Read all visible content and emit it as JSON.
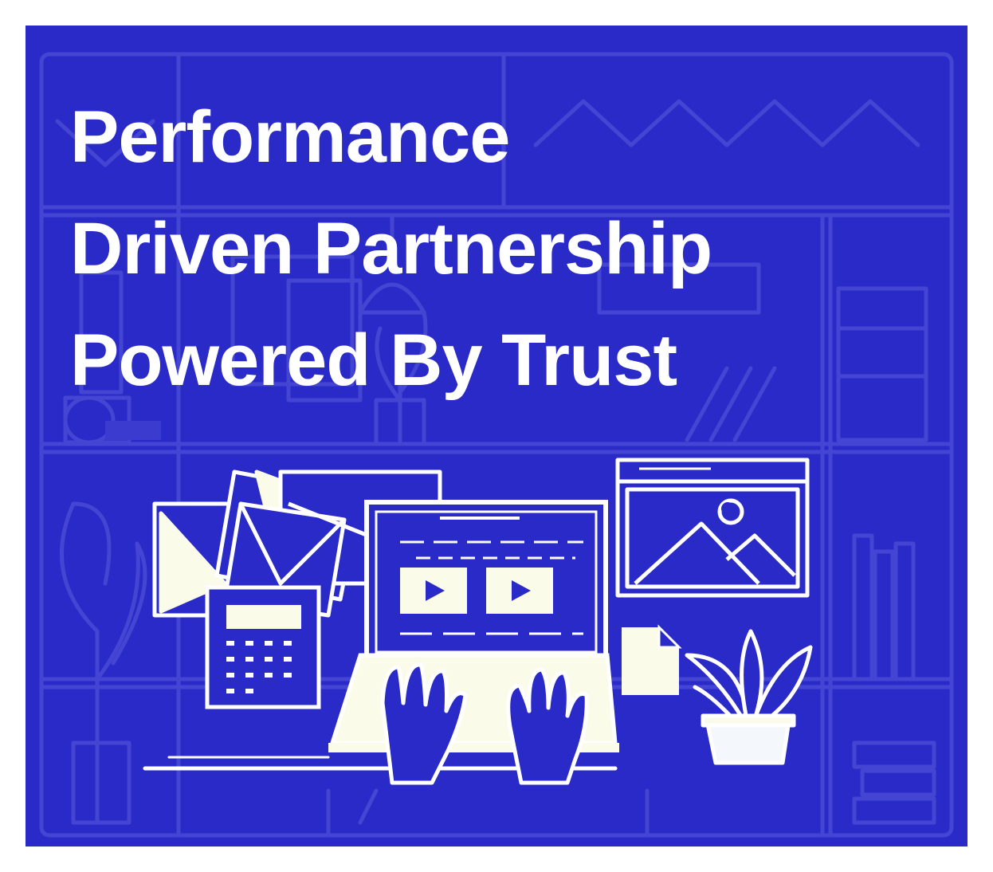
{
  "headline": {
    "line1": "Performance",
    "line2": "Driven Partnership",
    "line3": "Powered By Trust"
  },
  "colors": {
    "background": "#2a2ac8",
    "faint_lines": "#4a4ad6",
    "ink": "#ffffff",
    "cream": "#fbfbea",
    "page_margin": "#ffffff"
  },
  "icons": {
    "background": "office-shelves-sketch-icon",
    "envelopes": "envelope-stack-icon",
    "calculator": "calculator-icon",
    "monitor": "monitor-with-video-players-icon",
    "play_buttons": "play-icon",
    "image_window": "image-window-icon",
    "document": "document-icon",
    "plant": "potted-plant-icon",
    "hands": "typing-hands-icon"
  }
}
